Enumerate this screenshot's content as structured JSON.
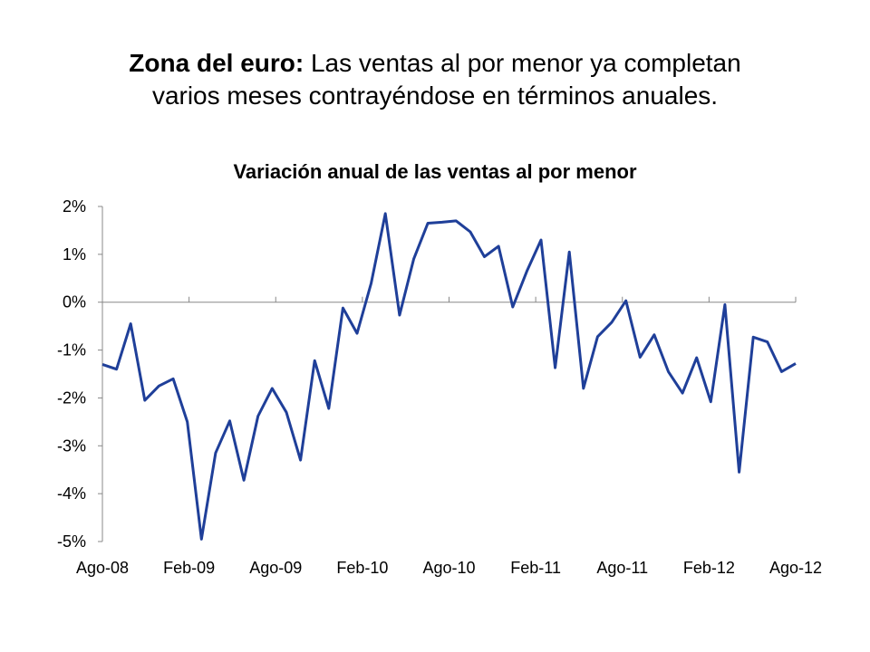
{
  "headline": {
    "bold_part": "Zona del euro:",
    "line1_rest": " Las ventas al por menor ya completan",
    "line2": "varios meses contrayéndose en términos anuales."
  },
  "chart_data": {
    "type": "line",
    "title": "Variación anual de las ventas al por menor",
    "xlabel": "",
    "ylabel": "",
    "ylim": [
      -5,
      2
    ],
    "yticks": [
      2,
      1,
      0,
      -1,
      -2,
      -3,
      -4,
      -5
    ],
    "ytick_labels": [
      "2%",
      "1%",
      "0%",
      "-1%",
      "-2%",
      "-3%",
      "-4%",
      "-5%"
    ],
    "x_tick_labels": [
      "Ago-08",
      "Feb-09",
      "Ago-09",
      "Feb-10",
      "Ago-10",
      "Feb-11",
      "Ago-11",
      "Feb-12",
      "Ago-12"
    ],
    "grid": false,
    "legend": "none",
    "series": [
      {
        "color": "#1f3f99",
        "values": [
          -1.3,
          -1.4,
          -0.45,
          -2.05,
          -1.75,
          -1.6,
          -2.5,
          -4.95,
          -3.15,
          -2.48,
          -3.72,
          -2.38,
          -1.8,
          -2.3,
          -3.3,
          -1.22,
          -2.22,
          -0.12,
          -0.65,
          0.4,
          1.85,
          -0.27,
          0.9,
          1.65,
          1.67,
          1.7,
          1.47,
          0.95,
          1.17,
          -0.1,
          0.65,
          1.3,
          -1.37,
          1.05,
          -1.8,
          -0.72,
          -0.42,
          0.03,
          -1.15,
          -0.68,
          -1.45,
          -1.9,
          -1.16,
          -2.08,
          -0.05,
          -3.55,
          -0.73,
          -0.83,
          -1.45,
          -1.28
        ]
      }
    ]
  }
}
